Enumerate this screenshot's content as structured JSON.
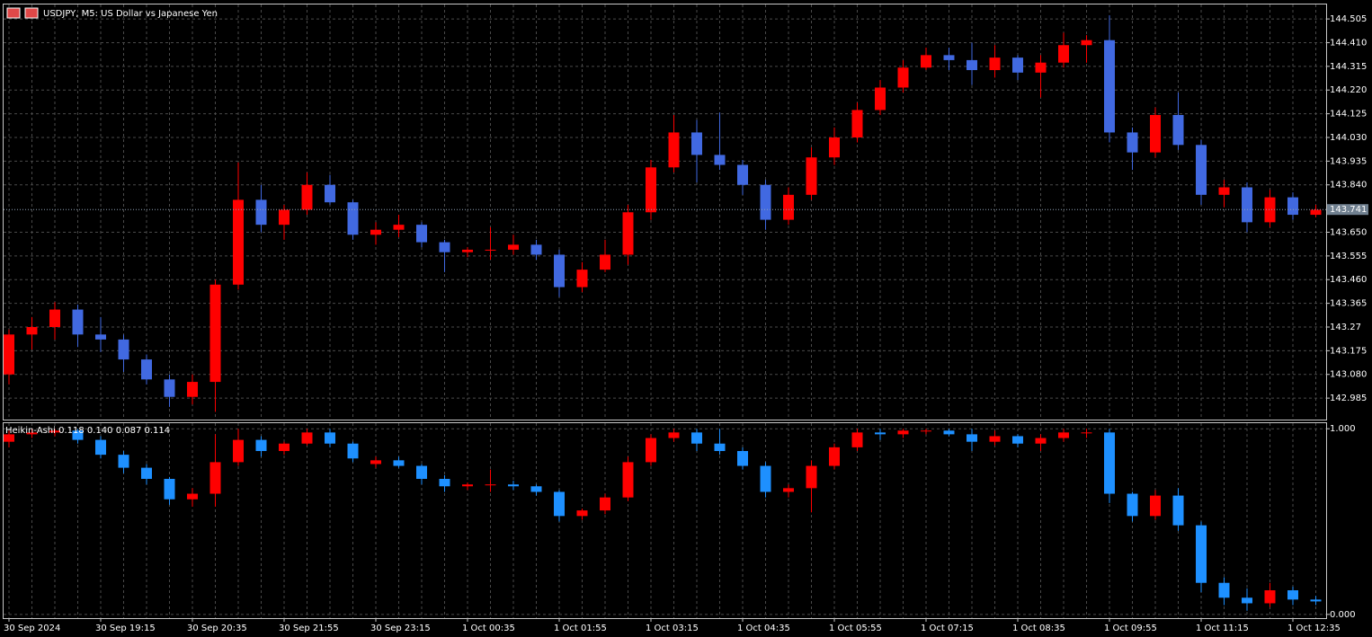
{
  "chart_data": [
    {
      "type": "candlestick",
      "title": "USDJPY, M5:  US Dollar vs Japanese Yen",
      "categories": [
        "30 Sep 2024",
        null,
        null,
        null,
        "30 Sep 19:15",
        null,
        null,
        null,
        "30 Sep 20:35",
        null,
        null,
        null,
        "30 Sep 21:55",
        null,
        null,
        null,
        "30 Sep 23:15",
        null,
        null,
        null,
        "1 Oct 00:35",
        null,
        null,
        null,
        "1 Oct 01:55",
        null,
        null,
        null,
        "1 Oct 03:15",
        null,
        null,
        null,
        "1 Oct 04:35",
        null,
        null,
        null,
        "1 Oct 05:55",
        null,
        null,
        null,
        "1 Oct 07:15",
        null,
        null,
        null,
        "1 Oct 08:35",
        null,
        null,
        null,
        "1 Oct 09:55",
        null,
        null,
        null,
        "1 Oct 11:15",
        null,
        null,
        null,
        "1 Oct 12:35",
        null
      ],
      "open": [
        143.08,
        143.24,
        143.27,
        143.34,
        143.24,
        143.22,
        143.14,
        143.06,
        142.99,
        143.05,
        143.44,
        143.78,
        143.68,
        143.74,
        143.84,
        143.77,
        143.64,
        143.66,
        143.68,
        143.61,
        143.57,
        143.58,
        143.58,
        143.6,
        143.56,
        143.43,
        143.5,
        143.56,
        143.73,
        143.91,
        144.05,
        143.96,
        143.92,
        143.84,
        143.7,
        143.8,
        143.95,
        144.03,
        144.14,
        144.23,
        144.31,
        144.36,
        144.34,
        144.3,
        144.35,
        144.29,
        144.33,
        144.4,
        144.42,
        144.05,
        143.97,
        144.12,
        144.0,
        143.8,
        143.83,
        143.69,
        143.79,
        143.72
      ],
      "high": [
        143.26,
        143.31,
        143.37,
        143.36,
        143.31,
        143.24,
        143.16,
        143.08,
        143.08,
        143.46,
        143.93,
        143.84,
        143.76,
        143.89,
        143.88,
        143.78,
        143.69,
        143.72,
        143.69,
        143.62,
        143.59,
        143.67,
        143.64,
        143.62,
        143.58,
        143.53,
        143.62,
        143.76,
        143.94,
        144.12,
        144.1,
        144.13,
        143.94,
        143.86,
        143.83,
        143.99,
        144.07,
        144.17,
        144.26,
        144.34,
        144.39,
        144.39,
        144.41,
        144.4,
        144.36,
        144.36,
        144.45,
        144.44,
        144.52,
        144.07,
        144.15,
        144.21,
        144.02,
        143.86,
        143.85,
        143.82,
        143.81,
        143.76
      ],
      "low": [
        143.04,
        143.18,
        143.22,
        143.19,
        143.17,
        143.09,
        143.04,
        142.95,
        142.96,
        142.93,
        143.42,
        143.65,
        143.62,
        143.72,
        143.76,
        143.62,
        143.6,
        143.63,
        143.59,
        143.49,
        143.55,
        143.54,
        143.56,
        143.54,
        143.39,
        143.41,
        143.49,
        143.52,
        143.7,
        143.89,
        143.85,
        143.9,
        143.8,
        143.66,
        143.68,
        143.78,
        143.92,
        144.01,
        144.12,
        144.21,
        144.3,
        144.3,
        144.24,
        144.27,
        144.26,
        144.19,
        144.31,
        144.33,
        144.01,
        143.9,
        143.95,
        143.98,
        143.76,
        143.75,
        143.65,
        143.67,
        143.7,
        143.71
      ],
      "close": [
        143.24,
        143.27,
        143.34,
        143.24,
        143.22,
        143.14,
        143.06,
        142.99,
        143.05,
        143.44,
        143.78,
        143.68,
        143.74,
        143.84,
        143.77,
        143.64,
        143.66,
        143.68,
        143.61,
        143.57,
        143.58,
        143.58,
        143.6,
        143.56,
        143.43,
        143.5,
        143.56,
        143.73,
        143.91,
        144.05,
        143.96,
        143.92,
        143.84,
        143.7,
        143.8,
        143.95,
        144.03,
        144.14,
        144.23,
        144.31,
        144.36,
        144.34,
        144.3,
        144.35,
        144.29,
        144.33,
        144.4,
        144.42,
        144.05,
        143.97,
        144.12,
        144.0,
        143.8,
        143.83,
        143.69,
        143.79,
        143.72,
        143.74
      ],
      "up_color": "#ff0000",
      "down_color": "#4169e1",
      "ylim": [
        142.899,
        144.563
      ],
      "yticks": [
        142.985,
        {
          "value": 143.08,
          "label": "143.080"
        },
        143.175,
        143.27,
        143.365,
        {
          "value": 143.46,
          "label": "143.460"
        },
        143.555,
        {
          "value": 143.65,
          "label": "143.650"
        },
        {
          "value": 143.84,
          "label": "143.840"
        },
        143.935,
        {
          "value": 144.03,
          "label": "144.030"
        },
        144.125,
        {
          "value": 144.22,
          "label": "144.220"
        },
        144.315,
        {
          "value": 144.41,
          "label": "144.410"
        },
        144.505
      ],
      "current_price": 143.741,
      "grid": true
    },
    {
      "type": "candlestick",
      "title": "Heikin-Ashi 0.118 0.140 0.087 0.114",
      "open": [
        0.93,
        0.97,
        0.98,
        0.99,
        0.94,
        0.86,
        0.79,
        0.73,
        0.62,
        0.65,
        0.82,
        0.94,
        0.88,
        0.92,
        0.98,
        0.92,
        0.81,
        0.83,
        0.8,
        0.73,
        0.69,
        0.7,
        0.7,
        0.69,
        0.66,
        0.53,
        0.56,
        0.63,
        0.82,
        0.95,
        0.98,
        0.92,
        0.88,
        0.8,
        0.66,
        0.68,
        0.8,
        0.9,
        0.98,
        0.97,
        0.99,
        0.99,
        0.97,
        0.93,
        0.96,
        0.92,
        0.95,
        0.98,
        0.98,
        0.65,
        0.53,
        0.64,
        0.48,
        0.17,
        0.09,
        0.06,
        0.13,
        0.08
      ],
      "high": [
        0.99,
        1.0,
        1.0,
        1.0,
        0.96,
        0.88,
        0.81,
        0.74,
        0.68,
        0.97,
        1.0,
        0.96,
        0.93,
        1.0,
        1.0,
        0.93,
        0.85,
        0.85,
        0.81,
        0.75,
        0.71,
        0.78,
        0.72,
        0.7,
        0.67,
        0.57,
        0.65,
        0.85,
        0.97,
        1.0,
        1.0,
        1.0,
        0.9,
        0.82,
        0.7,
        0.83,
        0.92,
        1.0,
        1.0,
        1.0,
        1.0,
        1.0,
        1.0,
        0.99,
        0.97,
        0.97,
        1.0,
        1.0,
        1.0,
        0.66,
        0.67,
        0.68,
        0.5,
        0.2,
        0.14,
        0.17,
        0.15,
        0.1
      ],
      "low": [
        0.9,
        0.95,
        0.96,
        0.92,
        0.84,
        0.76,
        0.7,
        0.59,
        0.58,
        0.58,
        0.8,
        0.85,
        0.86,
        0.91,
        0.9,
        0.82,
        0.79,
        0.79,
        0.7,
        0.66,
        0.67,
        0.66,
        0.67,
        0.64,
        0.5,
        0.51,
        0.54,
        0.61,
        0.8,
        0.93,
        0.88,
        0.86,
        0.78,
        0.63,
        0.63,
        0.55,
        0.78,
        0.88,
        0.94,
        0.95,
        0.97,
        0.96,
        0.88,
        0.91,
        0.9,
        0.88,
        0.93,
        0.95,
        0.6,
        0.5,
        0.51,
        0.45,
        0.12,
        0.05,
        0.02,
        0.04,
        0.05,
        0.05
      ],
      "close": [
        0.97,
        0.98,
        0.99,
        0.94,
        0.86,
        0.79,
        0.73,
        0.62,
        0.65,
        0.82,
        0.94,
        0.88,
        0.92,
        0.98,
        0.92,
        0.84,
        0.83,
        0.8,
        0.73,
        0.69,
        0.7,
        0.7,
        0.69,
        0.66,
        0.53,
        0.56,
        0.63,
        0.82,
        0.95,
        0.98,
        0.92,
        0.88,
        0.8,
        0.66,
        0.68,
        0.8,
        0.9,
        0.98,
        0.97,
        0.99,
        0.99,
        0.97,
        0.93,
        0.96,
        0.92,
        0.95,
        0.98,
        0.98,
        0.65,
        0.53,
        0.64,
        0.48,
        0.17,
        0.09,
        0.06,
        0.13,
        0.08,
        0.07
      ],
      "up_color": "#ff0000",
      "down_color": "#1e90ff",
      "ylim": [
        -0.02,
        1.03
      ],
      "yticks": [
        {
          "value": 1,
          "label": "1.000"
        },
        {
          "value": 0,
          "label": "0.000"
        }
      ],
      "grid": true
    }
  ]
}
